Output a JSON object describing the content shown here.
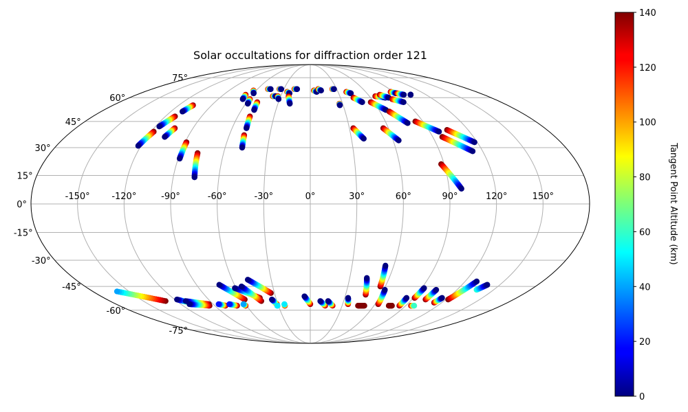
{
  "chart_data": {
    "type": "scatter",
    "projection": "mollweide",
    "title": "Solar occultations for diffraction order 121",
    "colormap": "jet",
    "colorbar": {
      "label": "Tangent Point Altitude (km)",
      "min": 0,
      "max": 140,
      "ticks": [
        "0",
        "20",
        "40",
        "60",
        "80",
        "100",
        "120",
        "140"
      ]
    },
    "lon_ticks": [
      {
        "value": -150,
        "label": "-150°"
      },
      {
        "value": -120,
        "label": "-120°"
      },
      {
        "value": -90,
        "label": "-90°"
      },
      {
        "value": -60,
        "label": "-60°"
      },
      {
        "value": -30,
        "label": "-30°"
      },
      {
        "value": 0,
        "label": "0°"
      },
      {
        "value": 30,
        "label": "30°"
      },
      {
        "value": 60,
        "label": "60°"
      },
      {
        "value": 90,
        "label": "90°"
      },
      {
        "value": 120,
        "label": "120°"
      },
      {
        "value": 150,
        "label": "150°"
      }
    ],
    "lat_ticks": [
      {
        "value": 75,
        "label": "75°"
      },
      {
        "value": 60,
        "label": "60°"
      },
      {
        "value": 45,
        "label": "45°"
      },
      {
        "value": 30,
        "label": "30°"
      },
      {
        "value": 15,
        "label": "15°"
      },
      {
        "value": 0,
        "label": "0°"
      },
      {
        "value": -15,
        "label": "-15°"
      },
      {
        "value": -30,
        "label": "-30°"
      },
      {
        "value": -45,
        "label": "-45°"
      },
      {
        "value": -60,
        "label": "-60°"
      },
      {
        "value": -75,
        "label": "-75°"
      }
    ],
    "tracks": [
      {
        "lon_start": -122,
        "lat_start": 31,
        "lon_end": -118,
        "lat_end": 39,
        "alt_start": 0,
        "alt_end": 140
      },
      {
        "lon_start": -117,
        "lat_start": 42,
        "lon_end": -112,
        "lat_end": 48,
        "alt_start": 0,
        "alt_end": 140
      },
      {
        "lon_start": -110,
        "lat_start": 51,
        "lon_end": -107,
        "lat_end": 55,
        "alt_start": 0,
        "alt_end": 140
      },
      {
        "lon_start": -107,
        "lat_start": 36,
        "lon_end": -104,
        "lat_end": 41,
        "alt_start": 0,
        "alt_end": 140
      },
      {
        "lon_start": -89,
        "lat_start": 24,
        "lon_end": -89,
        "lat_end": 33,
        "alt_start": 0,
        "alt_end": 140
      },
      {
        "lon_start": -76,
        "lat_start": 14,
        "lon_end": -78,
        "lat_end": 27,
        "alt_start": 0,
        "alt_end": 140
      },
      {
        "lon_start": -66,
        "lat_start": 59,
        "lon_end": -67,
        "lat_end": 62,
        "alt_start": 0,
        "alt_end": 140
      },
      {
        "lon_start": -60,
        "lat_start": 63,
        "lon_end": -63,
        "lat_end": 65,
        "alt_start": 0,
        "alt_end": 140
      },
      {
        "lon_start": -58,
        "lat_start": 56,
        "lon_end": -59,
        "lat_end": 59,
        "alt_start": 0,
        "alt_end": 140
      },
      {
        "lon_start": -49,
        "lat_start": 52,
        "lon_end": -50,
        "lat_end": 57,
        "alt_start": 0,
        "alt_end": 140
      },
      {
        "lon_start": -49,
        "lat_start": 41,
        "lon_end": -50,
        "lat_end": 48,
        "alt_start": 0,
        "alt_end": 140
      },
      {
        "lon_start": -48,
        "lat_start": 30,
        "lon_end": -49,
        "lat_end": 37,
        "alt_start": 0,
        "alt_end": 140
      },
      {
        "lon_start": -45,
        "lat_start": 66,
        "lon_end": -48,
        "lat_end": 66,
        "alt_start": 0,
        "alt_end": 140
      },
      {
        "lon_start": -35,
        "lat_start": 61,
        "lon_end": -38,
        "lat_end": 61,
        "alt_start": 0,
        "alt_end": 140
      },
      {
        "lon_start": -31,
        "lat_start": 59,
        "lon_end": -33,
        "lat_end": 61,
        "alt_start": 0,
        "alt_end": 140
      },
      {
        "lon_start": -33,
        "lat_start": 66,
        "lon_end": -35,
        "lat_end": 66,
        "alt_start": 0,
        "alt_end": 140
      },
      {
        "lon_start": -22,
        "lat_start": 63,
        "lon_end": -25,
        "lat_end": 64,
        "alt_start": 0,
        "alt_end": 140
      },
      {
        "lon_start": -19,
        "lat_start": 56,
        "lon_end": -22,
        "lat_end": 61,
        "alt_start": 0,
        "alt_end": 140
      },
      {
        "lon_start": -15,
        "lat_start": 66,
        "lon_end": -18,
        "lat_end": 66,
        "alt_start": 0,
        "alt_end": 140
      },
      {
        "lon_start": 7,
        "lat_start": 64,
        "lon_end": 4,
        "lat_end": 65,
        "alt_start": 0,
        "alt_end": 140
      },
      {
        "lon_start": 12,
        "lat_start": 65,
        "lon_end": 9,
        "lat_end": 66,
        "alt_start": 0,
        "alt_end": 140
      },
      {
        "lon_start": 27,
        "lat_start": 66,
        "lon_end": 25,
        "lat_end": 66,
        "alt_start": 0,
        "alt_end": 140
      },
      {
        "lon_start": 27,
        "lat_start": 55,
        "lon_end": 27,
        "lat_end": 56,
        "alt_start": 0,
        "alt_end": 140
      },
      {
        "lon_start": 43,
        "lat_start": 63,
        "lon_end": 39,
        "lat_end": 64,
        "alt_start": 0,
        "alt_end": 140
      },
      {
        "lon_start": 49,
        "lat_start": 57,
        "lon_end": 43,
        "lat_end": 60,
        "alt_start": 0,
        "alt_end": 140
      },
      {
        "lon_start": 39,
        "lat_start": 35,
        "lon_end": 33,
        "lat_end": 41,
        "alt_start": 0,
        "alt_end": 140
      },
      {
        "lon_start": 64,
        "lat_start": 34,
        "lon_end": 56,
        "lat_end": 41,
        "alt_start": 0,
        "alt_end": 140
      },
      {
        "lon_start": 66,
        "lat_start": 52,
        "lon_end": 57,
        "lat_end": 57,
        "alt_start": 0,
        "alt_end": 140
      },
      {
        "lon_start": 77,
        "lat_start": 44,
        "lon_end": 68,
        "lat_end": 51,
        "alt_start": 0,
        "alt_end": 140
      },
      {
        "lon_start": 75,
        "lat_start": 60,
        "lon_end": 66,
        "lat_end": 61,
        "alt_start": 0,
        "alt_end": 140
      },
      {
        "lon_start": 78,
        "lat_start": 60,
        "lon_end": 72,
        "lat_end": 62,
        "alt_start": 0,
        "alt_end": 140
      },
      {
        "lon_start": 88,
        "lat_start": 57,
        "lon_end": 80,
        "lat_end": 59,
        "alt_start": 0,
        "alt_end": 140
      },
      {
        "lon_start": 91,
        "lat_start": 63,
        "lon_end": 87,
        "lat_end": 64,
        "alt_start": 0,
        "alt_end": 140
      },
      {
        "lon_start": 97,
        "lat_start": 62,
        "lon_end": 92,
        "lat_end": 63,
        "alt_start": 0,
        "alt_end": 140
      },
      {
        "lon_start": 104,
        "lat_start": 62,
        "lon_end": 104,
        "lat_end": 62,
        "alt_start": 0,
        "alt_end": 0
      },
      {
        "lon_start": 97,
        "lat_start": 39,
        "lon_end": 84,
        "lat_end": 45,
        "alt_start": 0,
        "alt_end": 140
      },
      {
        "lon_start": 118,
        "lat_start": 33,
        "lon_end": 104,
        "lat_end": 40,
        "alt_start": 0,
        "alt_end": 140
      },
      {
        "lon_start": 113,
        "lat_start": 28,
        "lon_end": 97,
        "lat_end": 36,
        "alt_start": 0,
        "alt_end": 140
      },
      {
        "lon_start": 98,
        "lat_start": 8,
        "lon_end": 88,
        "lat_end": 21,
        "alt_start": 0,
        "alt_end": 140
      },
      {
        "lon_start": -160,
        "lat_start": -48,
        "lon_end": -130,
        "lat_end": -54,
        "alt_start": 40,
        "alt_end": 140
      },
      {
        "lon_start": -118,
        "lat_start": -53,
        "lon_end": -106,
        "lat_end": -56,
        "alt_start": 0,
        "alt_end": 140
      },
      {
        "lon_start": -112,
        "lat_start": -54,
        "lon_end": -94,
        "lat_end": -56,
        "alt_start": 0,
        "alt_end": 140
      },
      {
        "lon_start": -112,
        "lat_start": -56,
        "lon_end": -95,
        "lat_end": -57,
        "alt_start": 0,
        "alt_end": 140
      },
      {
        "lon_start": -85,
        "lat_start": -56,
        "lon_end": -80,
        "lat_end": -57,
        "alt_start": 20,
        "alt_end": 140
      },
      {
        "lon_start": -75,
        "lat_start": -56,
        "lon_end": -69,
        "lat_end": -57,
        "alt_start": 20,
        "alt_end": 140
      },
      {
        "lon_start": -72,
        "lat_start": -44,
        "lon_end": -58,
        "lat_end": -53,
        "alt_start": 0,
        "alt_end": 140
      },
      {
        "lon_start": -61,
        "lat_start": -46,
        "lon_end": -44,
        "lat_end": -52,
        "alt_start": 0,
        "alt_end": 140
      },
      {
        "lon_start": -55,
        "lat_start": -45,
        "lon_end": -44,
        "lat_end": -54,
        "alt_start": 0,
        "alt_end": 140
      },
      {
        "lon_start": -48,
        "lat_start": -41,
        "lon_end": -33,
        "lat_end": -49,
        "alt_start": 0,
        "alt_end": 140
      },
      {
        "lon_start": -62,
        "lat_start": -56,
        "lon_end": -61,
        "lat_end": -57,
        "alt_start": 40,
        "alt_end": 140
      },
      {
        "lon_start": -34,
        "lat_start": -53,
        "lon_end": -31,
        "lat_end": -56,
        "alt_start": 0,
        "alt_end": 140
      },
      {
        "lon_start": -31,
        "lat_start": -57,
        "lon_end": -31,
        "lat_end": -57,
        "alt_start": 50,
        "alt_end": 50
      },
      {
        "lon_start": -24,
        "lat_start": -56,
        "lon_end": -24,
        "lat_end": -57,
        "alt_start": 50,
        "alt_end": 140
      },
      {
        "lon_start": -5,
        "lat_start": -51,
        "lon_end": 0,
        "lat_end": -56,
        "alt_start": 0,
        "alt_end": 140
      },
      {
        "lon_start": 9,
        "lat_start": -54,
        "lon_end": 14,
        "lat_end": -57,
        "alt_start": 0,
        "alt_end": 140
      },
      {
        "lon_start": 16,
        "lat_start": -54,
        "lon_end": 21,
        "lat_end": -57,
        "alt_start": 0,
        "alt_end": 140
      },
      {
        "lon_start": 33,
        "lat_start": -52,
        "lon_end": 35,
        "lat_end": -56,
        "alt_start": 0,
        "alt_end": 140
      },
      {
        "lon_start": 43,
        "lat_start": -40,
        "lon_end": 47,
        "lat_end": -50,
        "alt_start": 0,
        "alt_end": 140
      },
      {
        "lon_start": 54,
        "lat_start": -33,
        "lon_end": 56,
        "lat_end": -45,
        "alt_start": 0,
        "alt_end": 140
      },
      {
        "lon_start": 61,
        "lat_start": -47,
        "lon_end": 63,
        "lat_end": -56,
        "alt_start": 0,
        "alt_end": 140
      },
      {
        "lon_start": 84,
        "lat_start": -52,
        "lon_end": 84,
        "lat_end": -57,
        "alt_start": 0,
        "alt_end": 140
      },
      {
        "lon_start": 92,
        "lat_start": -46,
        "lon_end": 91,
        "lat_end": -52,
        "alt_start": 0,
        "alt_end": 140
      },
      {
        "lon_start": 103,
        "lat_start": -47,
        "lon_end": 102,
        "lat_end": -53,
        "alt_start": 0,
        "alt_end": 140
      },
      {
        "lon_start": 98,
        "lat_start": -57,
        "lon_end": 95,
        "lat_end": -57,
        "alt_start": 60,
        "alt_end": 140
      },
      {
        "lon_start": 115,
        "lat_start": -52,
        "lon_end": 113,
        "lat_end": -55,
        "alt_start": 0,
        "alt_end": 140
      },
      {
        "lon_start": 129,
        "lat_start": -42,
        "lon_end": 122,
        "lat_end": -53,
        "alt_start": 0,
        "alt_end": 140
      },
      {
        "lon_start": 140,
        "lat_start": -44,
        "lon_end": 136,
        "lat_end": -47,
        "alt_start": 0,
        "alt_end": 60
      },
      {
        "lon_start": 77,
        "lat_start": -57,
        "lon_end": 74,
        "lat_end": -57,
        "alt_start": 140,
        "alt_end": 140
      },
      {
        "lon_start": 51,
        "lat_start": -57,
        "lon_end": 45,
        "lat_end": -57,
        "alt_start": 140,
        "alt_end": 140
      }
    ]
  }
}
